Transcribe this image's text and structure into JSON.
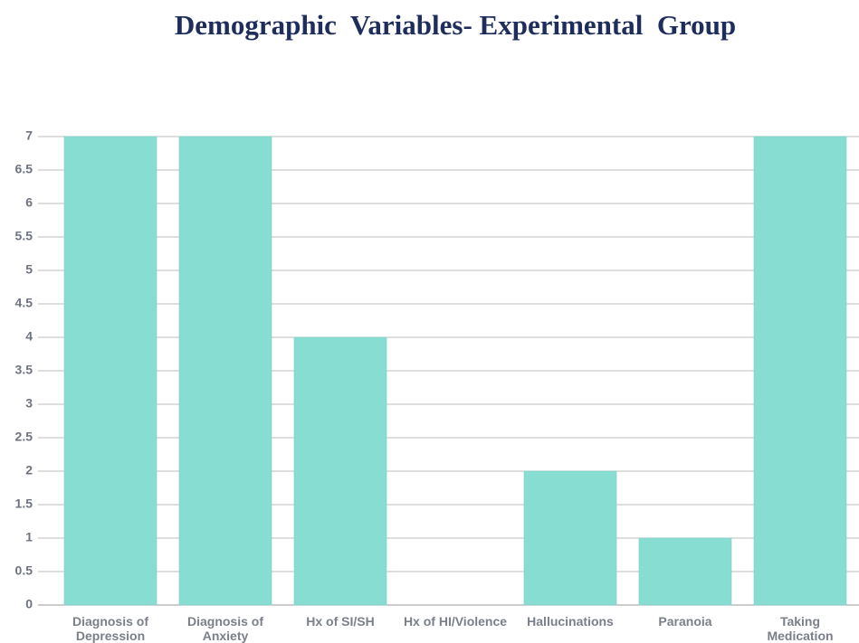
{
  "chart_data": {
    "type": "bar",
    "title": "Demographic  Variables- Experimental  Group",
    "categories": [
      "Diagnosis of Depression",
      "Diagnosis of Anxiety",
      "Hx of SI/SH",
      "Hx of HI/Violence",
      "Hallucinations",
      "Paranoia",
      "Taking Medication"
    ],
    "values": [
      7,
      7,
      4,
      0,
      2,
      1,
      7
    ],
    "color": "#88ddd3",
    "ylim": [
      0,
      7
    ],
    "yticks": [
      0,
      0.5,
      1,
      1.5,
      2,
      2.5,
      3,
      3.5,
      4,
      4.5,
      5,
      5.5,
      6,
      6.5,
      7
    ],
    "grid": true
  }
}
